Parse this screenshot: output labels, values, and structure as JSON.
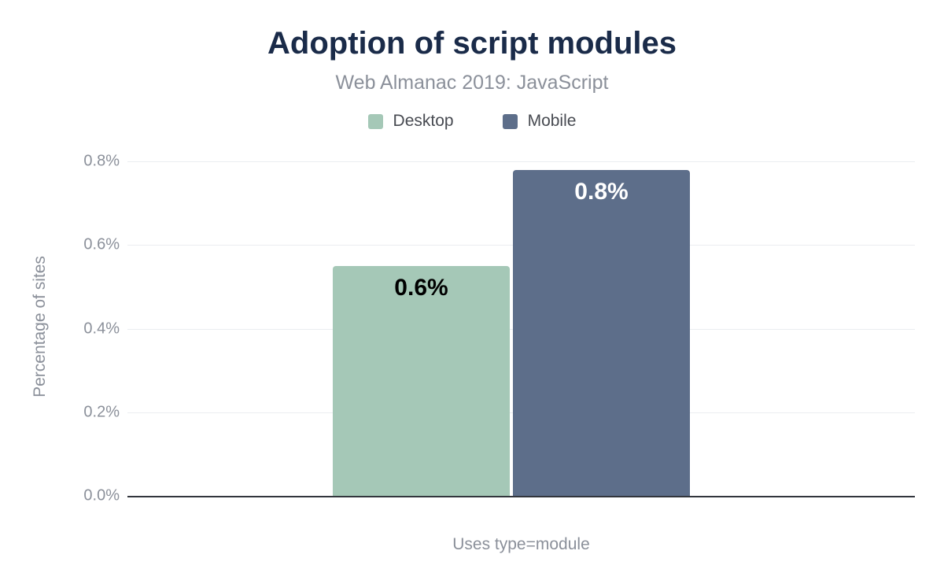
{
  "chart": {
    "title": "Adoption of script modules",
    "subtitle": "Web Almanac 2019: JavaScript",
    "y_axis_title": "Percentage of sites",
    "x_axis_title": "Uses type=module",
    "legend": [
      {
        "label": "Desktop",
        "color": "#a5c8b7"
      },
      {
        "label": "Mobile",
        "color": "#5d6e8a"
      }
    ],
    "colors": {
      "title": "#1a2b49",
      "muted_text": "#8b909a",
      "legend_text": "#474a51",
      "gridline": "#ebedf0",
      "baseline": "#32353c",
      "background": "#ffffff"
    }
  },
  "chart_data": {
    "type": "bar",
    "title": "Adoption of script modules",
    "subtitle": "Web Almanac 2019: JavaScript",
    "categories": [
      "Uses type=module"
    ],
    "series": [
      {
        "name": "Desktop",
        "color": "#a5c8b7",
        "values": [
          0.55
        ],
        "data_label": "0.6%",
        "label_color": "#000000"
      },
      {
        "name": "Mobile",
        "color": "#5d6e8a",
        "values": [
          0.78
        ],
        "data_label": "0.8%",
        "label_color": "#ffffff"
      }
    ],
    "xlabel": "Uses type=module",
    "ylabel": "Percentage of sites",
    "ylim": [
      0,
      0.8
    ],
    "yticks": [
      0.0,
      0.2,
      0.4,
      0.6,
      0.8
    ],
    "ytick_labels": [
      "0.0%",
      "0.2%",
      "0.4%",
      "0.6%",
      "0.8%"
    ],
    "grid": true,
    "legend_position": "top"
  }
}
